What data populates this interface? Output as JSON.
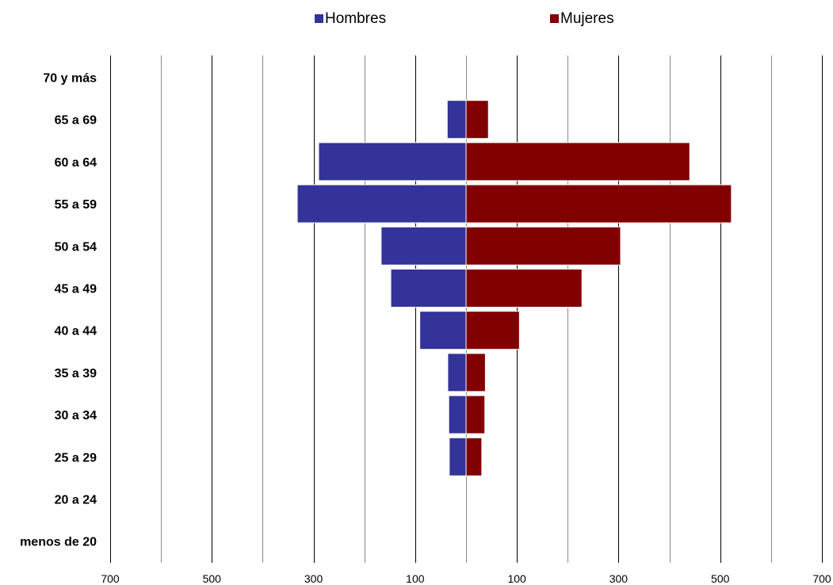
{
  "chart_data": {
    "type": "bar",
    "orientation": "horizontal",
    "subtype": "population-pyramid",
    "title": "",
    "xlabel": "",
    "ylabel": "",
    "categories": [
      "70 y más",
      "65 a 69",
      "60 a 64",
      "55 a 59",
      "50 a 54",
      "45 a 49",
      "40 a 44",
      "35 a 39",
      "30 a 34",
      "25 a 29",
      "20 a 24",
      "menos de 20"
    ],
    "series": [
      {
        "name": "Hombres",
        "color": "#333399",
        "side": "left",
        "values": [
          0,
          37,
          290,
          332,
          167,
          148,
          91,
          36,
          34,
          33,
          0,
          0
        ]
      },
      {
        "name": "Mujeres",
        "color": "#800000",
        "side": "right",
        "values": [
          0,
          44,
          440,
          522,
          304,
          228,
          105,
          38,
          37,
          31,
          0,
          0
        ]
      }
    ],
    "xlim": [
      -700,
      700
    ],
    "x_ticks": [
      -700,
      -500,
      -300,
      -100,
      100,
      300,
      500,
      700
    ],
    "x_tick_labels": [
      "700",
      "500",
      "300",
      "100",
      "100",
      "300",
      "500",
      "700"
    ],
    "x_grid_step": 100,
    "grid": true,
    "legend_position": "top-center"
  }
}
